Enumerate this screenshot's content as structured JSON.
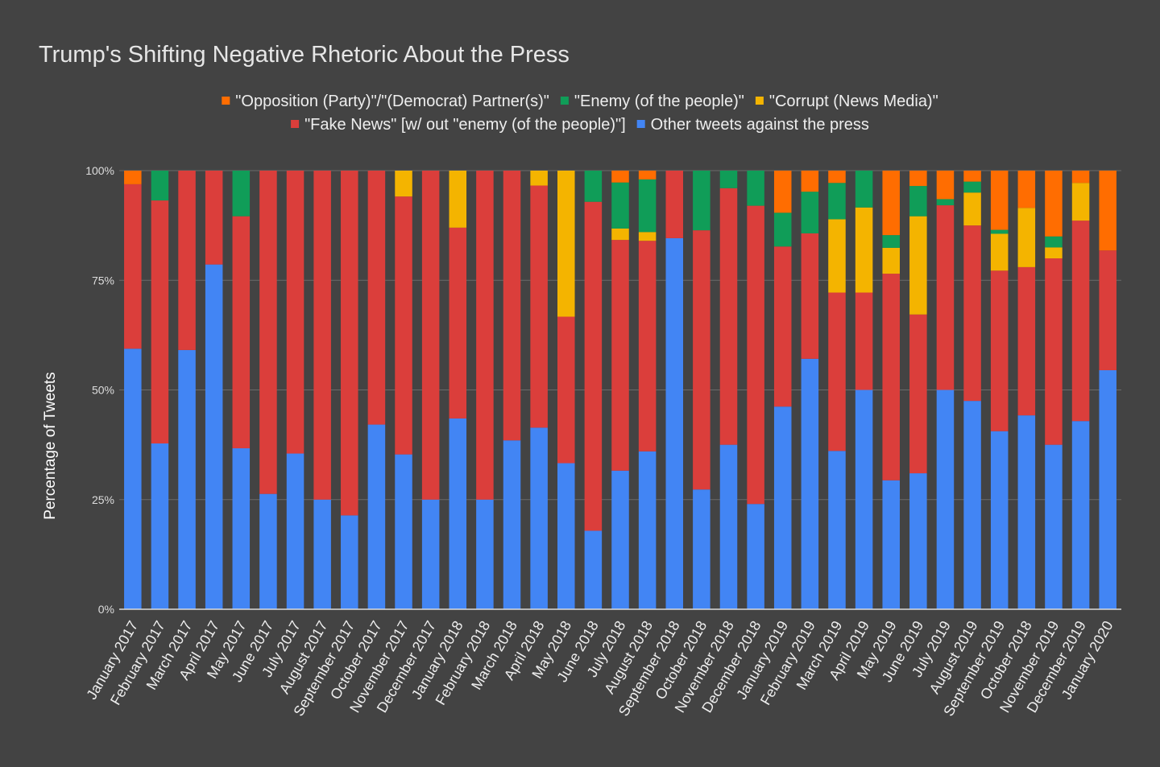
{
  "chart_data": {
    "type": "bar",
    "stacked": true,
    "percent_stacked": true,
    "title": "Trump's Shifting Negative Rhetoric About the Press",
    "xlabel": "",
    "ylabel": "Percentage of Tweets",
    "ylim": [
      0,
      100
    ],
    "yticks": [
      "0%",
      "25%",
      "50%",
      "75%",
      "100%"
    ],
    "ytick_values": [
      0,
      25,
      50,
      75,
      100
    ],
    "grid": true,
    "legend_position": "top",
    "categories": [
      "January 2017",
      "February 2017",
      "March 2017",
      "April 2017",
      "May 2017",
      "June 2017",
      "July 2017",
      "August 2017",
      "September 2017",
      "October 2017",
      "November 2017",
      "December 2017",
      "January 2018",
      "February 2018",
      "March 2018",
      "April 2018",
      "May 2018",
      "June 2018",
      "July 2018",
      "August 2018",
      "September 2018",
      "October 2018",
      "November 2018",
      "December 2018",
      "January 2019",
      "February 2019",
      "March 2019",
      "April 2019",
      "May 2019",
      "June 2019",
      "July 2019",
      "August 2019",
      "September 2019",
      "October 2018",
      "November 2019",
      "December 2019",
      "January 2020"
    ],
    "series": [
      {
        "name": "Other tweets against the press",
        "color": "#4285f4",
        "values": [
          59.4,
          37.8,
          59.1,
          78.6,
          36.7,
          26.3,
          35.5,
          25.0,
          21.4,
          42.1,
          35.3,
          25.0,
          43.5,
          25.0,
          38.5,
          41.4,
          33.3,
          17.9,
          31.6,
          36.0,
          84.6,
          27.3,
          37.5,
          24.0,
          46.2,
          57.1,
          36.1,
          50.0,
          29.4,
          31.0,
          50.0,
          47.5,
          40.6,
          44.2,
          37.5,
          42.9,
          54.5
        ]
      },
      {
        "name": "\"Fake News\" [w/ out \"enemy (of the people)\"]",
        "color": "#db3e3b",
        "values": [
          37.5,
          55.4,
          40.9,
          21.4,
          52.9,
          73.7,
          64.5,
          75.0,
          78.6,
          57.9,
          58.8,
          75.0,
          43.5,
          75.0,
          61.5,
          55.2,
          33.4,
          75.0,
          52.6,
          48.0,
          15.4,
          59.1,
          58.5,
          68.0,
          36.5,
          28.6,
          36.1,
          22.2,
          47.1,
          36.2,
          42.1,
          40.0,
          36.6,
          33.8,
          42.5,
          45.7,
          27.3
        ]
      },
      {
        "name": "\"Corrupt (News Media)\"",
        "color": "#f4b400",
        "values": [
          0,
          0,
          0,
          0,
          0,
          0,
          0,
          0,
          0,
          0,
          5.9,
          0,
          13.0,
          0,
          0,
          3.4,
          33.3,
          0,
          2.6,
          2.0,
          0,
          0,
          0,
          0,
          0,
          0,
          16.7,
          19.4,
          5.9,
          22.4,
          0,
          7.5,
          8.4,
          13.5,
          2.5,
          8.6,
          0
        ]
      },
      {
        "name": "\"Enemy (of the people)\"",
        "color": "#109d58",
        "values": [
          0,
          6.8,
          0,
          0,
          10.4,
          0,
          0,
          0,
          0,
          0,
          0,
          0,
          0,
          0,
          0,
          0,
          0,
          7.1,
          10.5,
          12.0,
          0,
          13.6,
          4.0,
          8.0,
          7.7,
          9.5,
          8.3,
          8.4,
          2.9,
          6.9,
          1.4,
          2.5,
          0.9,
          0,
          2.5,
          0,
          0
        ]
      },
      {
        "name": "\"Opposition (Party)\"/\"(Democrat) Partner(s)\"",
        "color": "#ff6d01",
        "values": [
          3.1,
          0,
          0,
          0,
          0,
          0,
          0,
          0,
          0,
          0,
          0,
          0,
          0,
          0,
          0,
          0,
          0,
          0,
          2.7,
          2.0,
          0,
          0,
          0,
          0,
          9.6,
          4.8,
          2.8,
          0,
          14.7,
          3.5,
          6.5,
          2.5,
          13.5,
          8.5,
          15.0,
          2.8,
          18.2
        ]
      }
    ],
    "legend_rows": [
      [
        {
          "label": "\"Opposition (Party)\"/\"(Democrat) Partner(s)\"",
          "color": "#ff6d01"
        },
        {
          "label": "\"Enemy (of the people)\"",
          "color": "#109d58"
        },
        {
          "label": "\"Corrupt (News Media)\"",
          "color": "#f4b400"
        }
      ],
      [
        {
          "label": "\"Fake News\" [w/ out \"enemy (of the people)\"]",
          "color": "#db3e3b"
        },
        {
          "label": "Other tweets against the press",
          "color": "#4285f4"
        }
      ]
    ]
  }
}
